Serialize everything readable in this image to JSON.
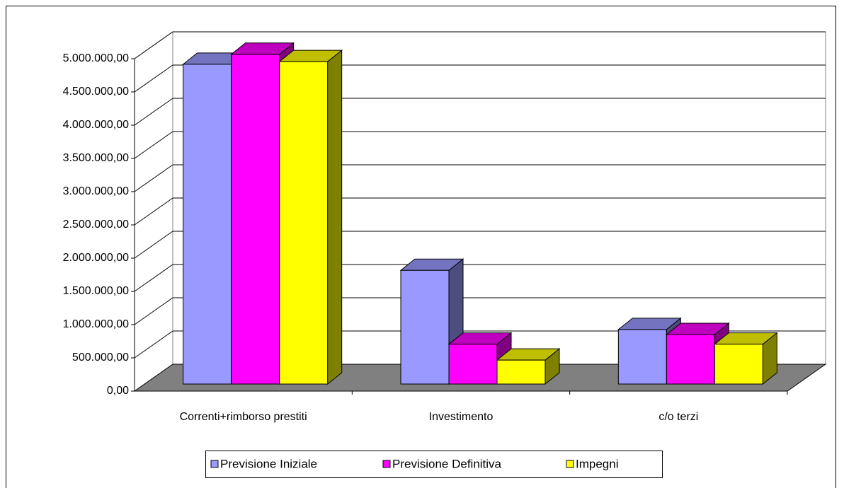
{
  "chart_data": {
    "type": "bar3d",
    "categories": [
      "Correnti+rimborso prestiti",
      "Investimento",
      "c/o terzi"
    ],
    "series": [
      {
        "name": "Previsione Iniziale",
        "color": "#9999ff",
        "values": [
          4810000,
          1710000,
          820000
        ]
      },
      {
        "name": "Previsione Definitiva",
        "color": "#ff00ff",
        "values": [
          4960000,
          600000,
          745000
        ]
      },
      {
        "name": "Impegni",
        "color": "#ffff00",
        "values": [
          4850000,
          360000,
          600000
        ]
      }
    ],
    "ylim": [
      0,
      5000000
    ],
    "yticks": [
      {
        "value": 0,
        "label": "0,00"
      },
      {
        "value": 500000,
        "label": "500.000,00"
      },
      {
        "value": 1000000,
        "label": "1.000.000,00"
      },
      {
        "value": 1500000,
        "label": "1.500.000,00"
      },
      {
        "value": 2000000,
        "label": "2.000.000,00"
      },
      {
        "value": 2500000,
        "label": "2.500.000,00"
      },
      {
        "value": 3000000,
        "label": "3.000.000,00"
      },
      {
        "value": 3500000,
        "label": "3.500.000,00"
      },
      {
        "value": 4000000,
        "label": "4.000.000,00"
      },
      {
        "value": 4500000,
        "label": "4.500.000,00"
      },
      {
        "value": 5000000,
        "label": "5.000.000,00"
      }
    ],
    "grid": true,
    "legend": "bottom"
  }
}
